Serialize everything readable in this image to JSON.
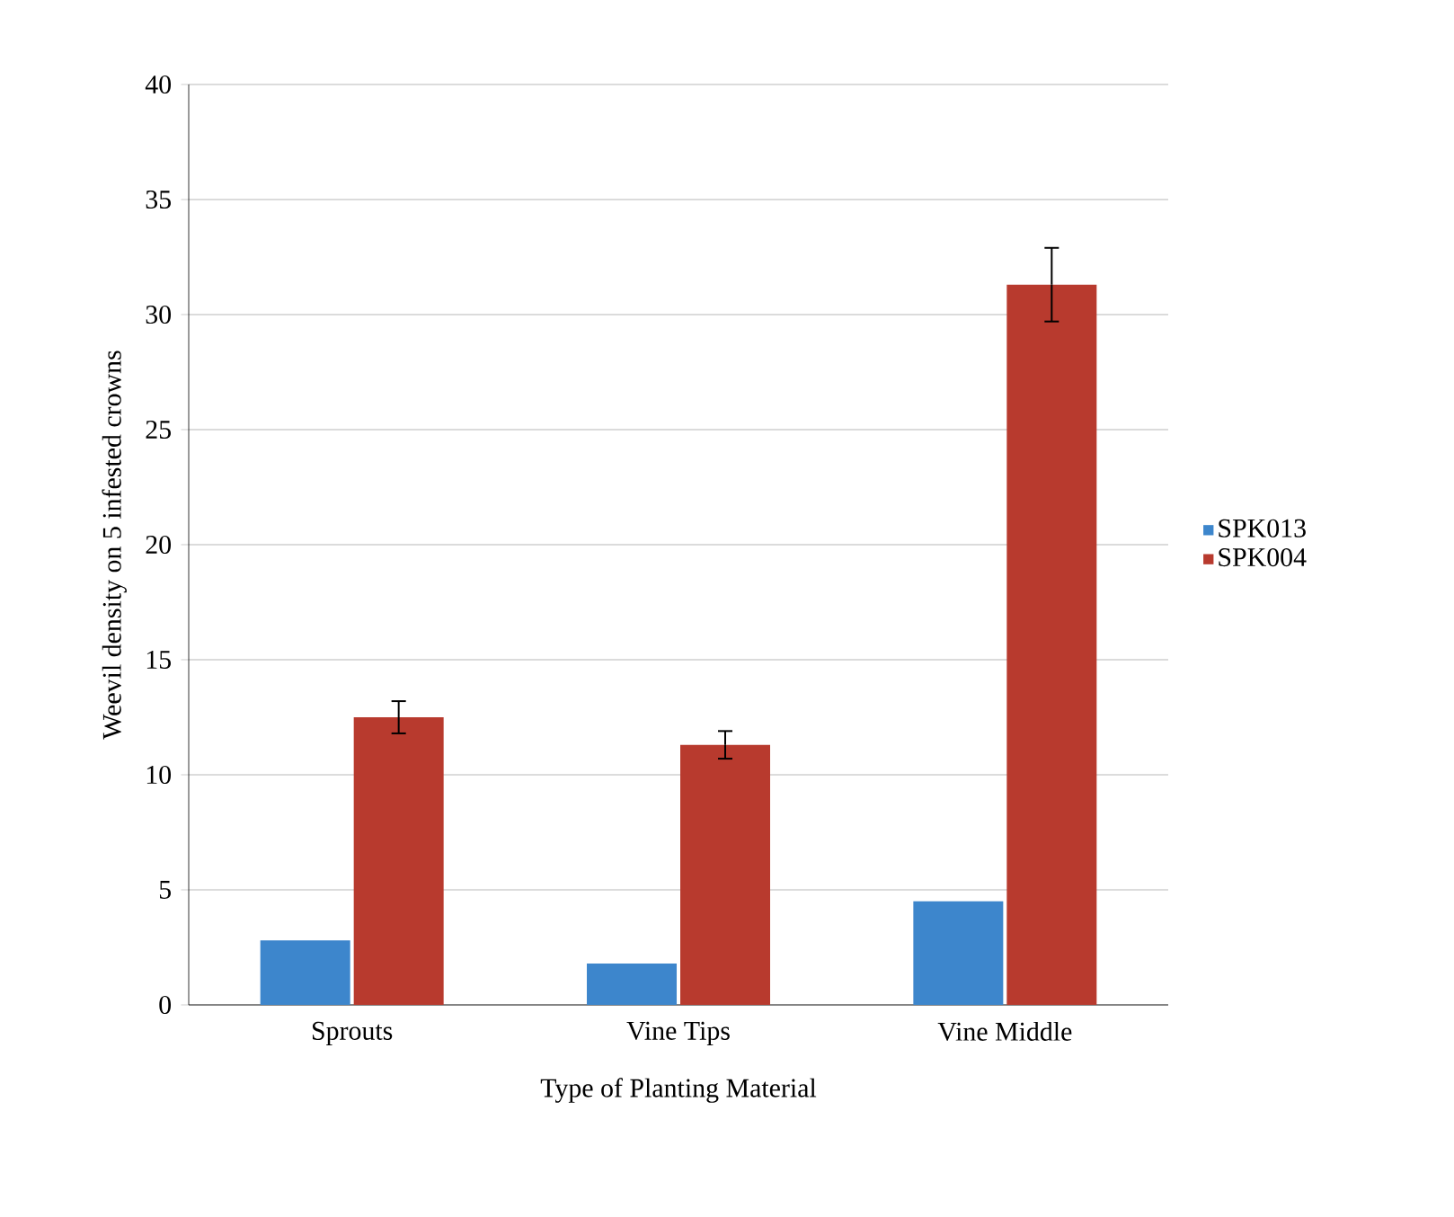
{
  "chart_data": {
    "type": "bar",
    "xlabel": "Type of Planting Material",
    "ylabel": "Weevil density on 5 infested crowns",
    "categories": [
      "Sprouts",
      "Vine Tips",
      "Vine Middle"
    ],
    "series": [
      {
        "name": "SPK013",
        "color": "#3d86cc",
        "values": [
          2.8,
          1.8,
          4.5
        ]
      },
      {
        "name": "SPK004",
        "color": "#b83a2e",
        "values": [
          12.5,
          11.3,
          31.3
        ],
        "errors": [
          0.7,
          0.6,
          1.6
        ]
      }
    ],
    "ylim": [
      0,
      40
    ],
    "yticks": [
      0,
      5,
      10,
      15,
      20,
      25,
      30,
      35,
      40
    ],
    "grid": "y",
    "legend": "right"
  }
}
